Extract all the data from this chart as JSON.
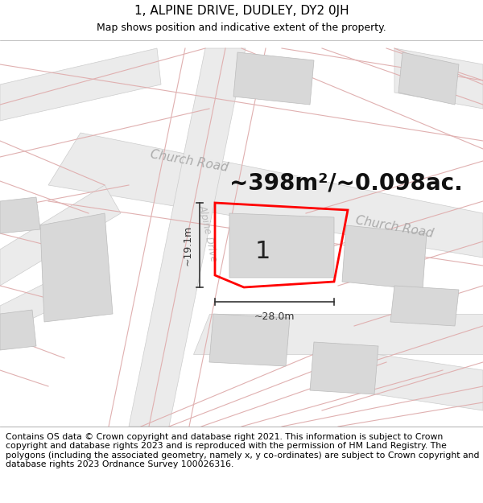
{
  "title_line1": "1, ALPINE DRIVE, DUDLEY, DY2 0JH",
  "title_line2": "Map shows position and indicative extent of the property.",
  "footer_text": "Contains OS data © Crown copyright and database right 2021. This information is subject to Crown copyright and database rights 2023 and is reproduced with the permission of HM Land Registry. The polygons (including the associated geometry, namely x, y co-ordinates) are subject to Crown copyright and database rights 2023 Ordnance Survey 100026316.",
  "area_text": "~398m²/~0.098ac.",
  "plot_label": "1",
  "dim_width": "~28.0m",
  "dim_height": "~19.1m",
  "road_label_1": "Church Road",
  "road_label_2": "Church Road",
  "road_label_3": "Alpine Drive",
  "map_bg": "#ffffff",
  "plot_color": "#ff0000",
  "road_fill": "#ebebeb",
  "building_fill": "#d8d8d8",
  "road_line_color": "#e0b0b0",
  "dim_color": "#333333",
  "title_fontsize": 11,
  "subtitle_fontsize": 9,
  "footer_fontsize": 7.8,
  "area_fontsize": 20,
  "label_fontsize": 20
}
